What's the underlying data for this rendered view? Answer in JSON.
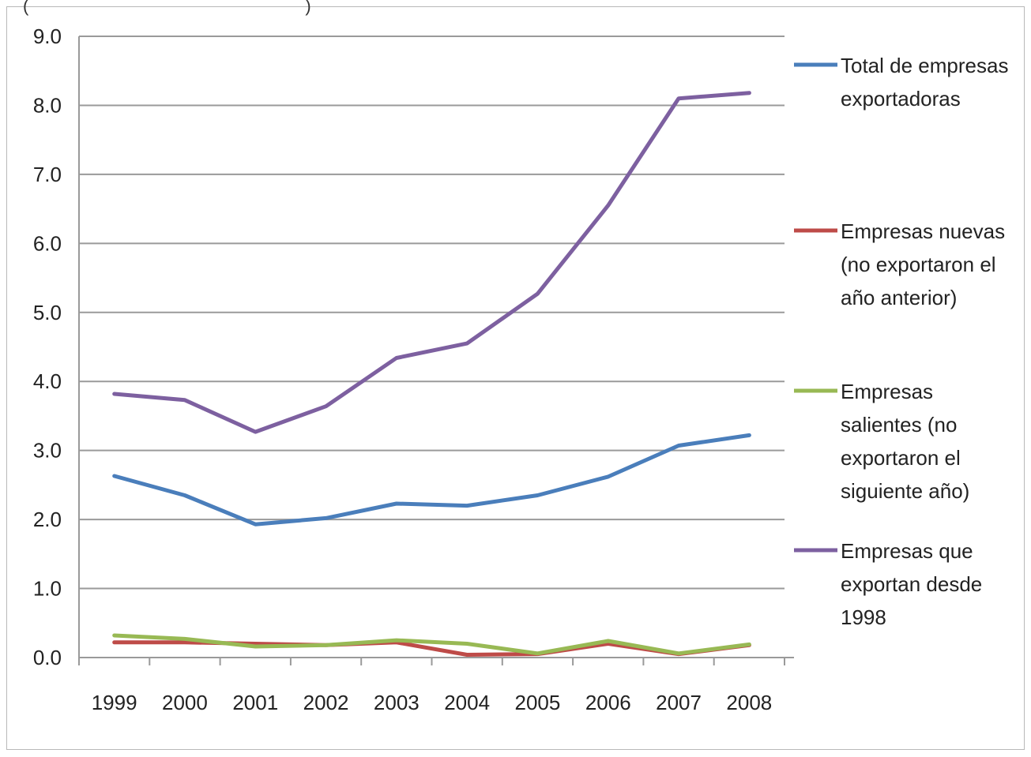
{
  "header_fragment": "(",
  "header_fragment_close": ")",
  "chart_data": {
    "type": "line",
    "title": "",
    "xlabel": "",
    "ylabel": "",
    "ylim": [
      0,
      9
    ],
    "yticks": [
      "0.0",
      "1.0",
      "2.0",
      "3.0",
      "4.0",
      "5.0",
      "6.0",
      "7.0",
      "8.0",
      "9.0"
    ],
    "categories": [
      "1999",
      "2000",
      "2001",
      "2002",
      "2003",
      "2004",
      "2005",
      "2006",
      "2007",
      "2008"
    ],
    "grid": true,
    "legend_position": "right",
    "series": [
      {
        "name": "Total de empresas exportadoras",
        "legend_lines": [
          "Total de empresas",
          "exportadoras"
        ],
        "color": "#4a7ebb",
        "values": [
          2.63,
          2.35,
          1.93,
          2.02,
          2.23,
          2.2,
          2.35,
          2.62,
          3.07,
          3.22
        ]
      },
      {
        "name": "Empresas nuevas (no exportaron el año anterior)",
        "legend_lines": [
          "Empresas nuevas",
          "(no exportaron el",
          "año anterior)"
        ],
        "color": "#be4b48",
        "values": [
          0.22,
          0.22,
          0.2,
          0.18,
          0.22,
          0.04,
          0.05,
          0.2,
          0.05,
          0.18
        ]
      },
      {
        "name": "Empresas salientes (no exportaron el siguiente año)",
        "legend_lines": [
          "Empresas",
          "salientes (no",
          "exportaron el",
          "siguiente año)"
        ],
        "color": "#98b954",
        "values": [
          0.32,
          0.27,
          0.16,
          0.18,
          0.25,
          0.2,
          0.06,
          0.24,
          0.06,
          0.19
        ]
      },
      {
        "name": "Empresas que exportan desde 1998",
        "legend_lines": [
          "Empresas que",
          "exportan desde",
          "1998"
        ],
        "color": "#7d60a0",
        "values": [
          3.82,
          3.73,
          3.27,
          3.64,
          4.34,
          4.55,
          5.27,
          6.55,
          8.1,
          8.18
        ]
      }
    ]
  }
}
